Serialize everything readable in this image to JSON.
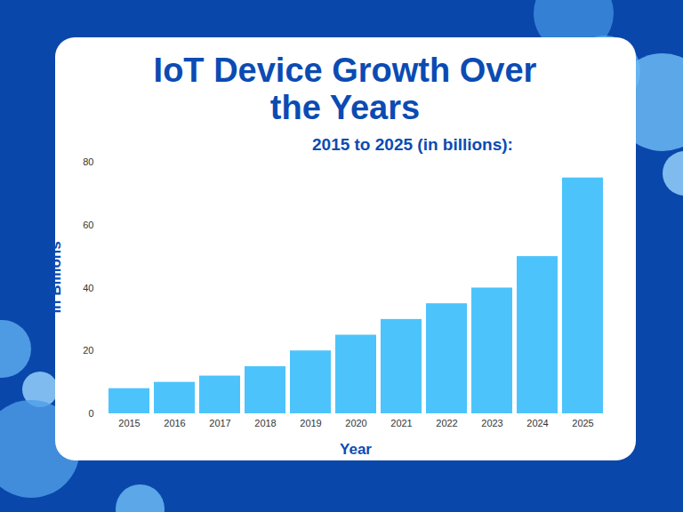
{
  "chart_data": {
    "type": "bar",
    "title": "IoT Device Growth Over the Years",
    "subtitle": "2015 to 2025 (in billions):",
    "x_label": "Year",
    "y_label": "In Billions",
    "categories": [
      "2015",
      "2016",
      "2017",
      "2018",
      "2019",
      "2020",
      "2021",
      "2022",
      "2023",
      "2024",
      "2025"
    ],
    "values": [
      8,
      10,
      12,
      15,
      20,
      25,
      30,
      35,
      40,
      50,
      75
    ],
    "color": "#4cc4fb",
    "ylim": [
      0,
      80
    ],
    "yticks": [
      0,
      20,
      40,
      60,
      80
    ],
    "grid": false
  }
}
